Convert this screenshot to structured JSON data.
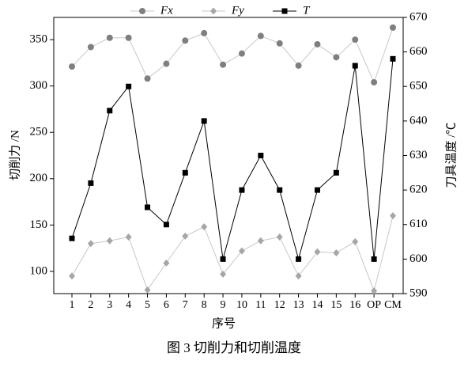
{
  "chart_data": {
    "type": "line",
    "title": "图 3   切削力和切削温度",
    "x_label": "序号",
    "y_label": "切削力 /N",
    "y2_label": "刀具温度 /℃",
    "categories": [
      "1",
      "2",
      "3",
      "4",
      "5",
      "6",
      "7",
      "8",
      "9",
      "10",
      "11",
      "12",
      "13",
      "14",
      "15",
      "16",
      "OP",
      "CM"
    ],
    "series": [
      {
        "name": "Fx",
        "color": "#7f7f7f",
        "marker": "circle",
        "axis": "y",
        "values": [
          321,
          342,
          352,
          352,
          308,
          324,
          349,
          357,
          323,
          335,
          354,
          346,
          322,
          345,
          331,
          350,
          304,
          363
        ]
      },
      {
        "name": "Fy",
        "color": "#a6a6a6",
        "marker": "diamond",
        "axis": "y",
        "values": [
          95,
          130,
          133,
          137,
          80,
          109,
          138,
          148,
          97,
          122,
          133,
          137,
          95,
          121,
          120,
          132,
          79,
          160
        ]
      },
      {
        "name": "T",
        "color": "#000000",
        "marker": "square",
        "axis": "y2",
        "values": [
          606,
          622,
          643,
          650,
          615,
          610,
          625,
          640,
          600,
          620,
          630,
          620,
          600,
          620,
          625,
          656,
          600,
          658
        ]
      }
    ],
    "ylim": [
      76,
      374
    ],
    "yticks": [
      100,
      150,
      200,
      250,
      300,
      350
    ],
    "y2lim": [
      590,
      670
    ],
    "y2ticks": [
      590,
      600,
      610,
      620,
      630,
      640,
      650,
      660,
      670
    ],
    "grid": false
  }
}
